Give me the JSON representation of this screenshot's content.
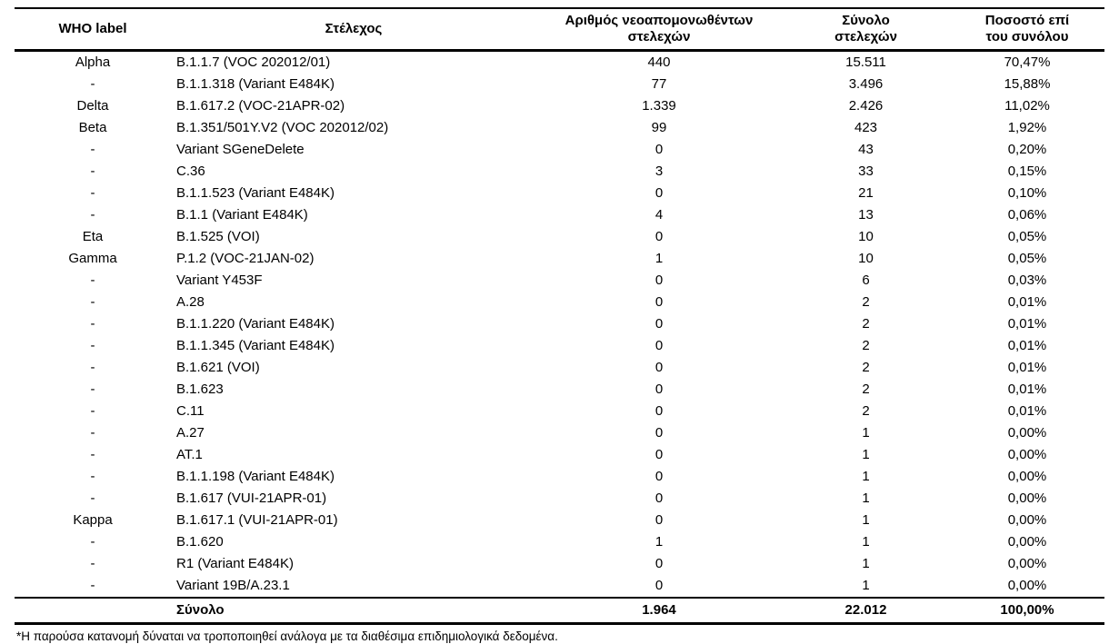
{
  "table": {
    "columns": [
      {
        "label": "WHO label"
      },
      {
        "label": "Στέλεχος"
      },
      {
        "label": "Αριθμός νεοαπομονωθέντων\nστελεχών"
      },
      {
        "label": "Σύνολο\nστελεχών"
      },
      {
        "label": "Ποσοστό επί\nτου συνόλου"
      }
    ],
    "rows": [
      {
        "who": "Alpha",
        "strain": "B.1.1.7 (VOC 202012/01)",
        "new_isolates": "440",
        "total_strains": "15.511",
        "percentage": "70,47%"
      },
      {
        "who": "-",
        "strain": "B.1.1.318 (Variant E484K)",
        "new_isolates": "77",
        "total_strains": "3.496",
        "percentage": "15,88%"
      },
      {
        "who": "Delta",
        "strain": "B.1.617.2 (VOC-21APR-02)",
        "new_isolates": "1.339",
        "total_strains": "2.426",
        "percentage": "11,02%"
      },
      {
        "who": "Beta",
        "strain": "B.1.351/501Y.V2 (VOC 202012/02)",
        "new_isolates": "99",
        "total_strains": "423",
        "percentage": "1,92%"
      },
      {
        "who": "-",
        "strain": "Variant SGeneDelete",
        "new_isolates": "0",
        "total_strains": "43",
        "percentage": "0,20%"
      },
      {
        "who": "-",
        "strain": "C.36",
        "new_isolates": "3",
        "total_strains": "33",
        "percentage": "0,15%"
      },
      {
        "who": "-",
        "strain": "B.1.1.523 (Variant E484K)",
        "new_isolates": "0",
        "total_strains": "21",
        "percentage": "0,10%"
      },
      {
        "who": "-",
        "strain": "B.1.1 (Variant E484K)",
        "new_isolates": "4",
        "total_strains": "13",
        "percentage": "0,06%"
      },
      {
        "who": "Eta",
        "strain": "B.1.525 (VOI)",
        "new_isolates": "0",
        "total_strains": "10",
        "percentage": "0,05%"
      },
      {
        "who": "Gamma",
        "strain": "P.1.2 (VOC-21JAN-02)",
        "new_isolates": "1",
        "total_strains": "10",
        "percentage": "0,05%"
      },
      {
        "who": "-",
        "strain": "Variant Y453F",
        "new_isolates": "0",
        "total_strains": "6",
        "percentage": "0,03%"
      },
      {
        "who": "-",
        "strain": "A.28",
        "new_isolates": "0",
        "total_strains": "2",
        "percentage": "0,01%"
      },
      {
        "who": "-",
        "strain": "B.1.1.220 (Variant E484K)",
        "new_isolates": "0",
        "total_strains": "2",
        "percentage": "0,01%"
      },
      {
        "who": "-",
        "strain": "B.1.1.345 (Variant E484K)",
        "new_isolates": "0",
        "total_strains": "2",
        "percentage": "0,01%"
      },
      {
        "who": "-",
        "strain": "B.1.621 (VOI)",
        "new_isolates": "0",
        "total_strains": "2",
        "percentage": "0,01%"
      },
      {
        "who": "-",
        "strain": "B.1.623",
        "new_isolates": "0",
        "total_strains": "2",
        "percentage": "0,01%"
      },
      {
        "who": "-",
        "strain": "C.11",
        "new_isolates": "0",
        "total_strains": "2",
        "percentage": "0,01%"
      },
      {
        "who": "-",
        "strain": "A.27",
        "new_isolates": "0",
        "total_strains": "1",
        "percentage": "0,00%"
      },
      {
        "who": "-",
        "strain": "AT.1",
        "new_isolates": "0",
        "total_strains": "1",
        "percentage": "0,00%"
      },
      {
        "who": "-",
        "strain": "B.1.1.198 (Variant E484K)",
        "new_isolates": "0",
        "total_strains": "1",
        "percentage": "0,00%"
      },
      {
        "who": "-",
        "strain": "B.1.617 (VUI-21APR-01)",
        "new_isolates": "0",
        "total_strains": "1",
        "percentage": "0,00%"
      },
      {
        "who": "Kappa",
        "strain": "B.1.617.1 (VUI-21APR-01)",
        "new_isolates": "0",
        "total_strains": "1",
        "percentage": "0,00%"
      },
      {
        "who": "-",
        "strain": "B.1.620",
        "new_isolates": "1",
        "total_strains": "1",
        "percentage": "0,00%"
      },
      {
        "who": "-",
        "strain": "R1 (Variant E484K)",
        "new_isolates": "0",
        "total_strains": "1",
        "percentage": "0,00%"
      },
      {
        "who": "-",
        "strain": "Variant 19B/A.23.1",
        "new_isolates": "0",
        "total_strains": "1",
        "percentage": "0,00%"
      }
    ],
    "total": {
      "label": "Σύνολο",
      "new_isolates": "1.964",
      "total_strains": "22.012",
      "percentage": "100,00%"
    }
  },
  "footnote": "*Η παρούσα κατανομή δύναται να τροποποιηθεί ανάλογα με τα διαθέσιμα επιδημιολογικά δεδομένα."
}
